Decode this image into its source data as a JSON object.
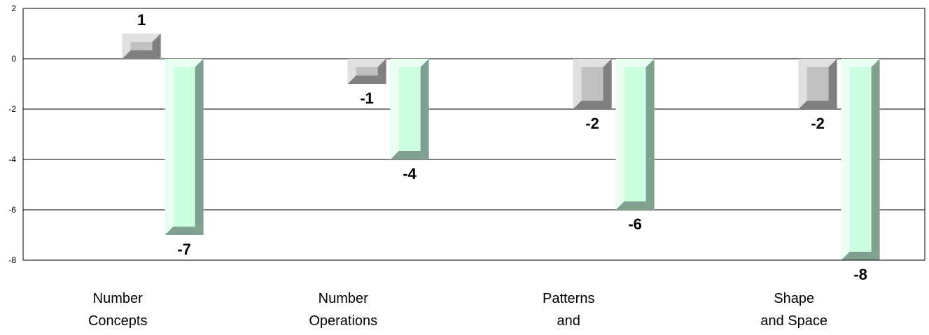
{
  "chart_data": {
    "type": "bar",
    "title": "",
    "xlabel": "",
    "ylabel": "",
    "categories": [
      [
        "Number",
        "Concepts"
      ],
      [
        "Number",
        "Operations"
      ],
      [
        "Patterns",
        "and"
      ],
      [
        "Shape",
        "and Space"
      ]
    ],
    "series": [
      {
        "values": [
          1,
          -1,
          -2,
          -2
        ],
        "color": "#c0c0c0",
        "label_position": "outside"
      },
      {
        "values": [
          -7,
          -4,
          -6,
          -8
        ],
        "color": "#ccffe0",
        "label_position": "below"
      }
    ],
    "data_labels": [
      [
        "1",
        "-1",
        "-2",
        "-2"
      ],
      [
        "-7",
        "-4",
        "-6",
        "-8"
      ]
    ],
    "ylim": [
      -8,
      2
    ],
    "yticks": [
      2,
      0,
      -2,
      -4,
      -6,
      -8
    ],
    "grid": true,
    "legend": "none"
  }
}
